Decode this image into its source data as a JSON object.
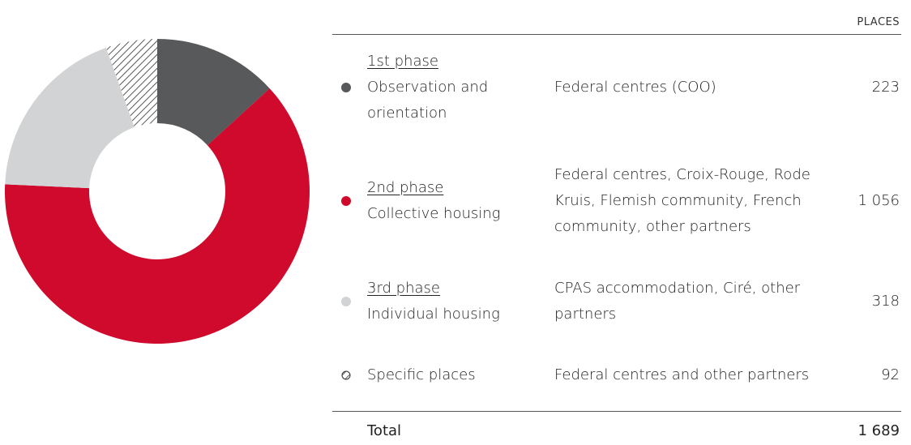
{
  "chart_data": {
    "type": "donut",
    "column_header": "PLACES",
    "phases": [
      "1st phase",
      "2nd phase",
      "3rd phase",
      null
    ],
    "categories": [
      "Observation and orientation",
      "Collective housing",
      "Individual housing",
      "Specific places"
    ],
    "partners": [
      "Federal centres (COO)",
      "Federal centres, Croix-Rouge, Rode Kruis, Flemish community, French community, other partners",
      "CPAS accommodation, Ciré, other partners",
      "Federal centres and other partners"
    ],
    "values": [
      223,
      1056,
      318,
      92
    ],
    "value_labels": [
      "223",
      "1 056",
      "318",
      "92"
    ],
    "colors": [
      "#58595b",
      "#cf0a2c",
      "#d1d3d4",
      "#333333"
    ],
    "hatched": [
      false,
      false,
      false,
      true
    ],
    "total_name": "Total",
    "total": 1689,
    "total_label": "1 689"
  }
}
